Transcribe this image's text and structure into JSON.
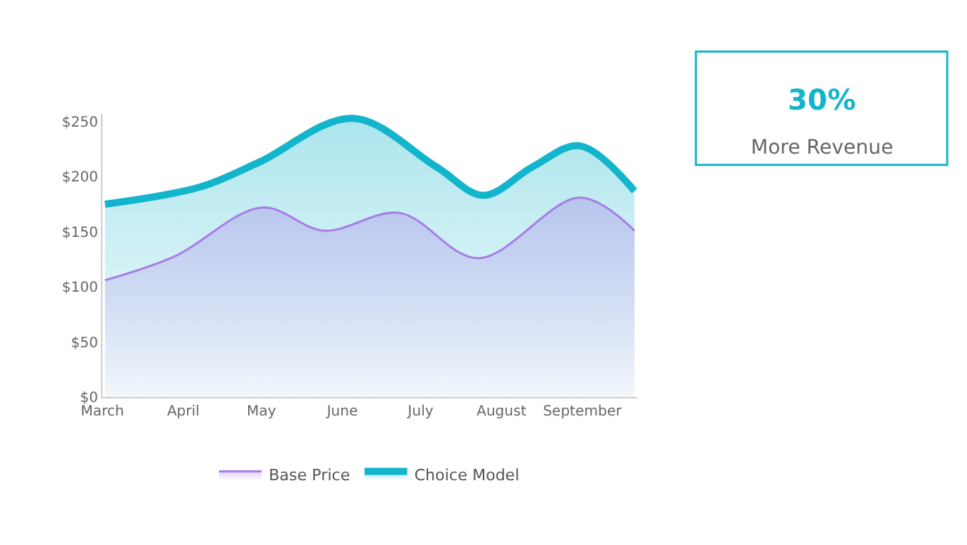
{
  "chart_data": {
    "type": "area",
    "annotations": [
      "30%",
      "More Revenue"
    ],
    "xlim": [
      "--03-01",
      "--09-22"
    ],
    "xticks": [
      {
        "value": "--03-01",
        "label": "March"
      },
      {
        "value": "--04-01",
        "label": "April"
      },
      {
        "value": "--05-01",
        "label": "May"
      },
      {
        "value": "--06-01",
        "label": "June"
      },
      {
        "value": "--07-01",
        "label": "July"
      },
      {
        "value": "--08-01",
        "label": "August"
      },
      {
        "value": "--09-01",
        "label": "September"
      }
    ],
    "ylim": [
      0,
      257
    ],
    "yticks": [
      {
        "value": 0,
        "label": "$0"
      },
      {
        "value": 50,
        "label": "$50"
      },
      {
        "value": 100,
        "label": "$100"
      },
      {
        "value": 150,
        "label": "$150"
      },
      {
        "value": 200,
        "label": "$200"
      },
      {
        "value": 250,
        "label": "$250"
      }
    ],
    "series": [
      {
        "name": "Base Price",
        "color": "#a77de6",
        "x": [
          "--03-02",
          "--03-29",
          "--05-01",
          "--05-25",
          "--06-23",
          "--07-23",
          "--08-31",
          "--09-21"
        ],
        "values": [
          106,
          128,
          172,
          151,
          167,
          126,
          181,
          151
        ]
      },
      {
        "name": "Choice Model",
        "color": "#12b5cb",
        "x": [
          "--03-02",
          "--04-08",
          "--04-30",
          "--06-05",
          "--07-07",
          "--07-25",
          "--08-13",
          "--08-31",
          "--09-21"
        ],
        "values": [
          175,
          191,
          213,
          253,
          209,
          183,
          209,
          228,
          187
        ]
      }
    ],
    "grid": false,
    "legend": "bottom",
    "marker": "none",
    "line_style": "solid"
  }
}
